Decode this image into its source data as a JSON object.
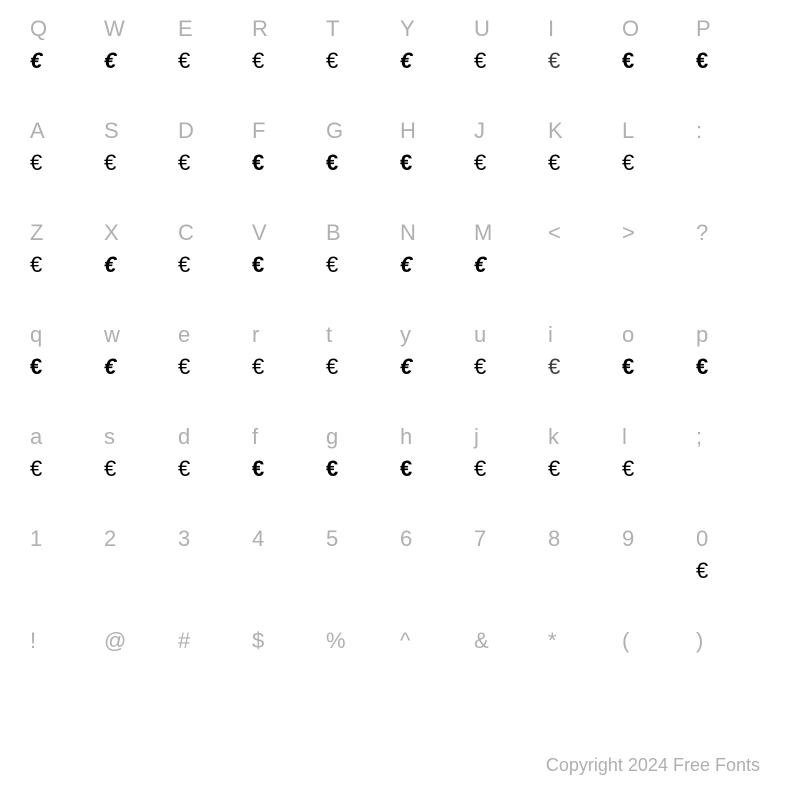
{
  "copyright": "Copyright 2024 Free Fonts",
  "label_color": "#b0b0b0",
  "glyph_color": "#000000",
  "background_color": "#ffffff",
  "label_fontsize": 22,
  "glyph_fontsize": 22,
  "rows": [
    {
      "labels": [
        "Q",
        "W",
        "E",
        "R",
        "T",
        "Y",
        "U",
        "I",
        "O",
        "P"
      ],
      "glyphs": [
        "€",
        "€",
        "€",
        "€",
        "€",
        "€",
        "€",
        "€",
        "€",
        "€"
      ],
      "styles": [
        "g-black g-italic",
        "g-black g-italic",
        "g-reg",
        "g-light",
        "g-reg",
        "g-black g-italic",
        "g-reg",
        "g-thin",
        "g-bold",
        "g-black"
      ]
    },
    {
      "labels": [
        "A",
        "S",
        "D",
        "F",
        "G",
        "H",
        "J",
        "K",
        "L",
        ":"
      ],
      "glyphs": [
        "€",
        "€",
        "€",
        "€",
        "€",
        "€",
        "€",
        "€",
        "€",
        ""
      ],
      "styles": [
        "g-light",
        "g-light",
        "g-reg",
        "g-black",
        "g-black",
        "g-black",
        "g-reg",
        "g-reg",
        "g-reg",
        ""
      ]
    },
    {
      "labels": [
        "Z",
        "X",
        "C",
        "V",
        "B",
        "N",
        "M",
        "<",
        ">",
        "?"
      ],
      "glyphs": [
        "€",
        "€",
        "€",
        "€",
        "€",
        "€",
        "€",
        "",
        "",
        ""
      ],
      "styles": [
        "g-reg",
        "g-black g-italic",
        "g-reg",
        "g-black",
        "g-light",
        "g-black g-italic",
        "g-bold g-italic",
        "",
        "",
        ""
      ]
    },
    {
      "labels": [
        "q",
        "w",
        "e",
        "r",
        "t",
        "y",
        "u",
        "i",
        "o",
        "p"
      ],
      "glyphs": [
        "€",
        "€",
        "€",
        "€",
        "€",
        "€",
        "€",
        "€",
        "€",
        "€"
      ],
      "styles": [
        "g-black",
        "g-black g-italic",
        "g-reg",
        "g-light",
        "g-reg",
        "g-black g-italic",
        "g-reg",
        "g-thin",
        "g-bold",
        "g-black"
      ]
    },
    {
      "labels": [
        "a",
        "s",
        "d",
        "f",
        "g",
        "h",
        "j",
        "k",
        "l",
        ";"
      ],
      "glyphs": [
        "€",
        "€",
        "€",
        "€",
        "€",
        "€",
        "€",
        "€",
        "€",
        ""
      ],
      "styles": [
        "g-light",
        "g-light",
        "g-reg",
        "g-black",
        "g-black",
        "g-black",
        "g-reg",
        "g-reg",
        "g-reg",
        ""
      ]
    },
    {
      "labels": [
        "1",
        "2",
        "3",
        "4",
        "5",
        "6",
        "7",
        "8",
        "9",
        "0"
      ],
      "glyphs": [
        "",
        "",
        "",
        "",
        "",
        "",
        "",
        "",
        "",
        "€"
      ],
      "styles": [
        "",
        "",
        "",
        "",
        "",
        "",
        "",
        "",
        "",
        "g-reg"
      ]
    },
    {
      "labels": [
        "!",
        "@",
        "#",
        "$",
        "%",
        "^",
        "&",
        "*",
        "(",
        ")"
      ],
      "glyphs": [
        "",
        "",
        "",
        "",
        "",
        "",
        "",
        "",
        "",
        ""
      ],
      "styles": [
        "",
        "",
        "",
        "",
        "",
        "",
        "",
        "",
        "",
        ""
      ]
    }
  ]
}
